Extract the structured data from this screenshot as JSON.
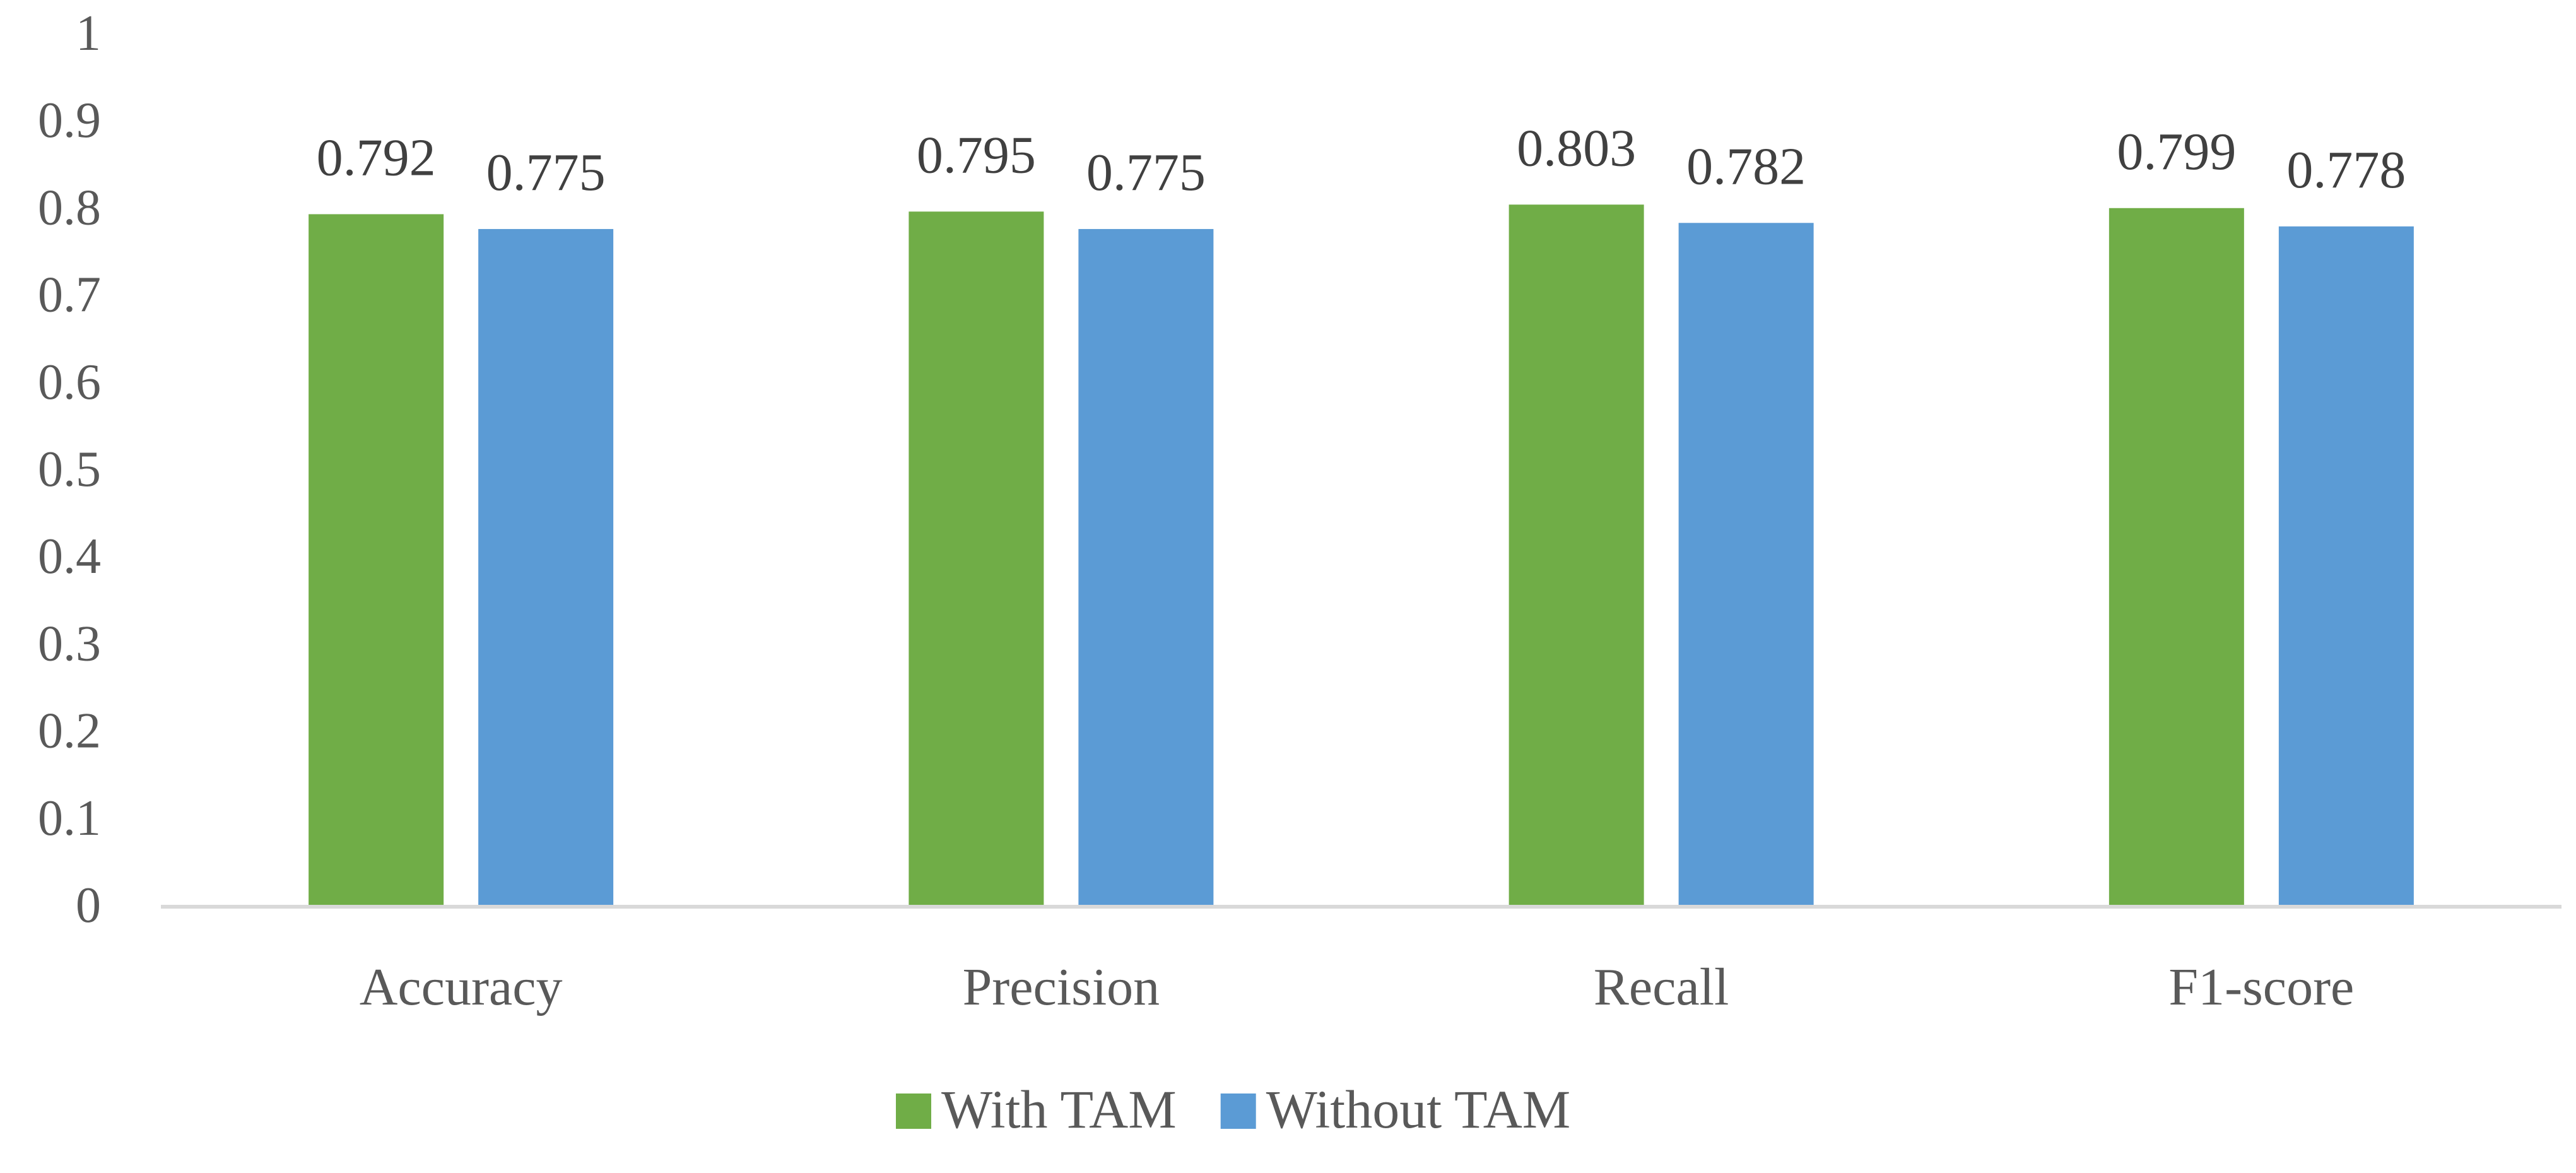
{
  "chart_data": {
    "type": "bar",
    "categories": [
      "Accuracy",
      "Precision",
      "Recall",
      "F1-score"
    ],
    "series": [
      {
        "name": "With TAM",
        "values": [
          0.792,
          0.795,
          0.803,
          0.799
        ],
        "color": "#70ad47"
      },
      {
        "name": "Without TAM",
        "values": [
          0.775,
          0.775,
          0.782,
          0.778
        ],
        "color": "#5b9bd5"
      }
    ],
    "yticks": [
      "0",
      "0.1",
      "0.2",
      "0.3",
      "0.4",
      "0.5",
      "0.6",
      "0.7",
      "0.8",
      "0.9",
      "1"
    ],
    "ylim": [
      0,
      1
    ],
    "grid": false,
    "data_labels": true,
    "legend_position": "bottom",
    "axis_color": "#d9d9d9"
  }
}
